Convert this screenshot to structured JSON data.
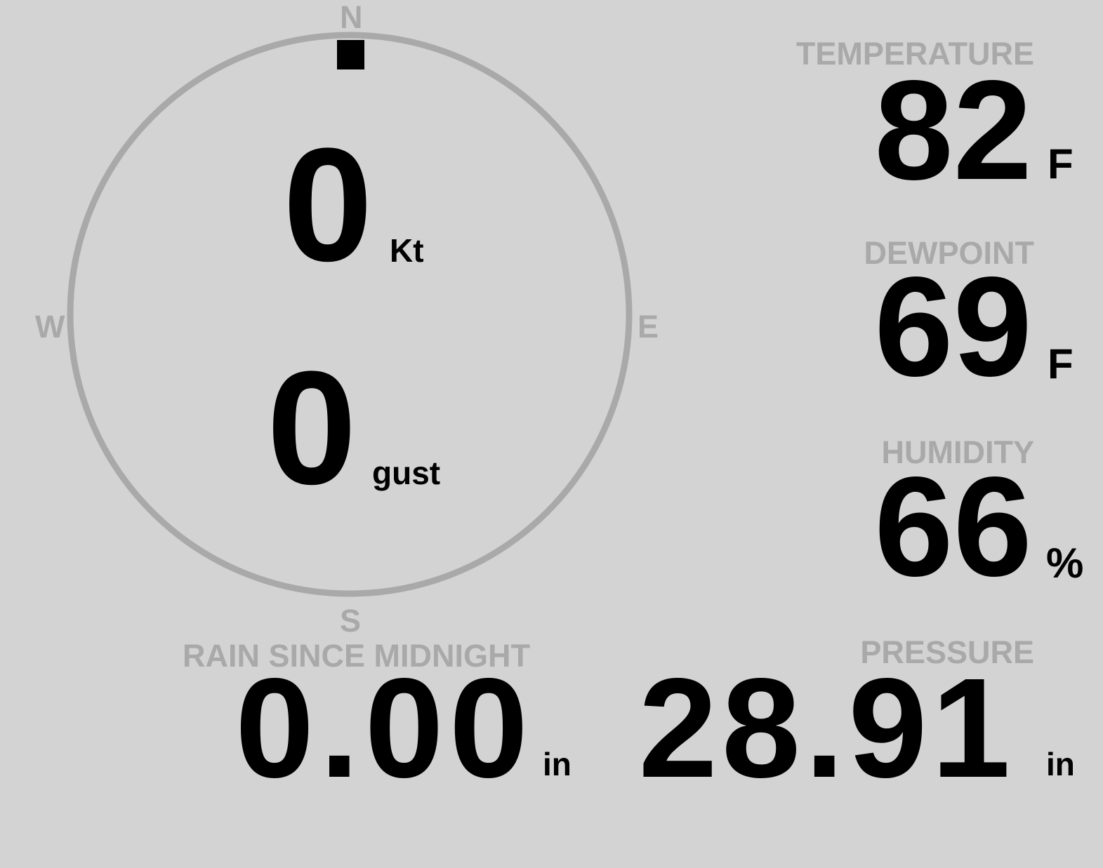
{
  "compass": {
    "north": "N",
    "south": "S",
    "east": "E",
    "west": "W",
    "direction_deg": 0,
    "ring_color": "#a9a9a9",
    "needle_color": "#000000"
  },
  "wind": {
    "speed": "0",
    "speed_unit": "Kt",
    "gust": "0",
    "gust_unit": "gust"
  },
  "temperature": {
    "label": "TEMPERATURE",
    "value": "82",
    "unit": "F"
  },
  "dewpoint": {
    "label": "DEWPOINT",
    "value": "69",
    "unit": "F"
  },
  "humidity": {
    "label": "HUMIDITY",
    "value": "66",
    "unit": "%"
  },
  "rain": {
    "label": "RAIN SINCE MIDNIGHT",
    "value": "0.00",
    "unit": "in"
  },
  "pressure": {
    "label": "PRESSURE",
    "value": "28.91",
    "unit": "in"
  },
  "colors": {
    "background": "#d3d3d3",
    "label": "#a9a9a9",
    "value": "#000000"
  }
}
